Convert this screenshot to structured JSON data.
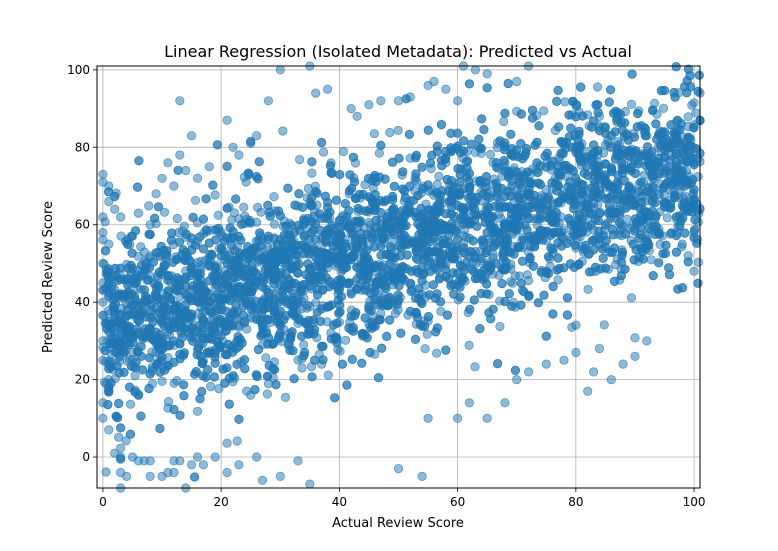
{
  "chart_data": {
    "type": "scatter",
    "title": "Linear Regression (Isolated Metadata): Predicted vs Actual",
    "xlabel": "Actual Review Score",
    "ylabel": "Predicted Review Score",
    "xlim": [
      -1,
      101
    ],
    "ylim": [
      -8,
      101
    ],
    "x_ticks": [
      0,
      20,
      40,
      60,
      80,
      100
    ],
    "y_ticks": [
      0,
      20,
      40,
      60,
      80,
      100
    ],
    "grid": true,
    "marker_color": "#1f77b4",
    "marker_alpha": 0.5,
    "trend": {
      "slope": 0.42,
      "intercept": 33.0,
      "spread": 11.5
    },
    "series": [
      {
        "points": [
          [
            0,
            73
          ],
          [
            0,
            71
          ],
          [
            1,
            70
          ],
          [
            0,
            62
          ],
          [
            0,
            58
          ],
          [
            1,
            55
          ],
          [
            0,
            50
          ],
          [
            0,
            45
          ],
          [
            0,
            40
          ],
          [
            1,
            35
          ],
          [
            0,
            30
          ],
          [
            0,
            25
          ],
          [
            1,
            20
          ],
          [
            0,
            14
          ],
          [
            0,
            10
          ],
          [
            1,
            7
          ],
          [
            2,
            1
          ],
          [
            3,
            0
          ],
          [
            3,
            -4
          ],
          [
            4,
            -5
          ],
          [
            3,
            -8
          ],
          [
            5,
            0
          ],
          [
            6,
            -1
          ],
          [
            7,
            -1
          ],
          [
            8,
            -1
          ],
          [
            8,
            -5
          ],
          [
            10,
            -5
          ],
          [
            11,
            -4
          ],
          [
            12,
            -1
          ],
          [
            12,
            -4
          ],
          [
            13,
            -1
          ],
          [
            14,
            -8
          ],
          [
            15,
            -2
          ],
          [
            16,
            0
          ],
          [
            17,
            -2
          ],
          [
            19,
            0
          ],
          [
            21,
            -4
          ],
          [
            23,
            -2
          ],
          [
            26,
            0
          ],
          [
            27,
            -6
          ],
          [
            30,
            -5
          ],
          [
            33,
            -1
          ],
          [
            35,
            -7
          ],
          [
            50,
            -3
          ],
          [
            54,
            -5
          ],
          [
            13,
            92
          ],
          [
            15,
            83
          ],
          [
            21,
            87
          ],
          [
            22,
            80
          ],
          [
            23,
            78
          ],
          [
            25,
            81
          ],
          [
            26,
            83
          ],
          [
            28,
            92
          ],
          [
            30,
            100
          ],
          [
            35,
            101
          ],
          [
            36,
            94
          ],
          [
            38,
            95
          ],
          [
            42,
            90
          ],
          [
            43,
            88
          ],
          [
            45,
            91
          ],
          [
            47,
            92
          ],
          [
            50,
            92
          ],
          [
            52,
            93
          ],
          [
            55,
            96
          ],
          [
            56,
            97
          ],
          [
            58,
            95
          ],
          [
            60,
            92
          ],
          [
            61,
            101
          ],
          [
            63,
            100
          ],
          [
            65,
            99
          ],
          [
            70,
            97
          ],
          [
            72,
            101
          ],
          [
            1,
            66
          ],
          [
            2,
            64
          ],
          [
            3,
            62
          ],
          [
            5,
            57
          ],
          [
            6,
            63
          ],
          [
            8,
            60
          ],
          [
            9,
            68
          ],
          [
            10,
            72
          ],
          [
            11,
            76
          ],
          [
            12,
            70
          ],
          [
            13,
            78
          ],
          [
            14,
            74
          ],
          [
            16,
            72
          ],
          [
            18,
            75
          ],
          [
            55,
            10
          ],
          [
            60,
            10
          ],
          [
            62,
            14
          ],
          [
            65,
            10
          ],
          [
            68,
            14
          ],
          [
            70,
            20
          ],
          [
            72,
            22
          ],
          [
            75,
            24
          ],
          [
            78,
            25
          ],
          [
            80,
            27
          ],
          [
            82,
            17
          ],
          [
            83,
            22
          ],
          [
            84,
            28
          ],
          [
            86,
            20
          ],
          [
            88,
            24
          ],
          [
            90,
            26
          ],
          [
            92,
            30
          ],
          [
            92,
            83
          ],
          [
            94,
            80
          ],
          [
            96,
            73
          ],
          [
            97,
            62
          ],
          [
            98,
            55
          ],
          [
            99,
            52
          ],
          [
            100,
            48
          ],
          [
            100,
            58
          ],
          [
            99,
            65
          ],
          [
            98,
            70
          ]
        ]
      }
    ]
  }
}
